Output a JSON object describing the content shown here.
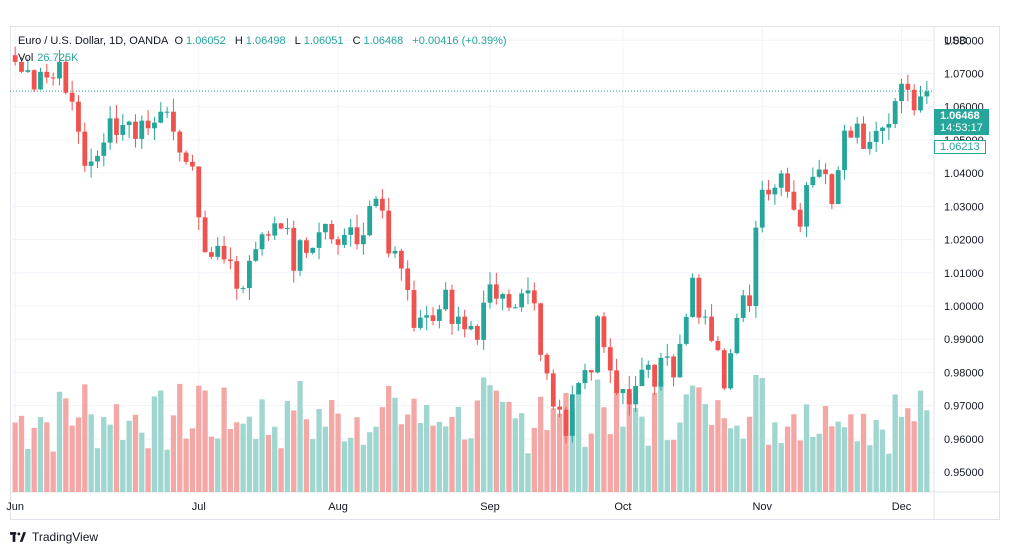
{
  "legend": {
    "symbol": "Euro / U.S. Dollar, 1D, OANDA",
    "open_label": "O",
    "open": "1.06052",
    "high_label": "H",
    "high": "1.06498",
    "low_label": "L",
    "low": "1.06051",
    "close_label": "C",
    "close": "1.06468",
    "change": "+0.00416 (+0.39%)"
  },
  "volume": {
    "label": "Vol",
    "value": "26.725K"
  },
  "price_axis": {
    "currency": "USD",
    "last_price": "1.06468",
    "countdown": "14:53:17",
    "secondary_price": "1.06213"
  },
  "footer": {
    "brand": "TradingView"
  },
  "colors": {
    "up": "#26a69a",
    "down": "#ef5350",
    "up_vol": "#9fd6cf",
    "down_vol": "#f4a8a6",
    "grid": "#f0f3fa"
  },
  "chart_data": {
    "type": "candlestick",
    "title": "Euro / U.S. Dollar, 1D, OANDA",
    "ylim": [
      0.944,
      1.084
    ],
    "y_ticks": [
      "1.08000",
      "1.07000",
      "1.06000",
      "1.05000",
      "1.04000",
      "1.03000",
      "1.02000",
      "1.01000",
      "1.00000",
      "0.99000",
      "0.98000",
      "0.97000",
      "0.96000",
      "0.95000"
    ],
    "x_ticks": [
      "Jun",
      "Jul",
      "Aug",
      "Sep",
      "Oct",
      "Nov",
      "Dec"
    ],
    "x_tick_index": [
      0,
      29,
      51,
      75,
      96,
      118,
      140
    ],
    "close_path": [
      1.0735,
      1.0705,
      1.071,
      1.0652,
      1.0705,
      1.0688,
      1.0685,
      1.0735,
      1.0642,
      1.0615,
      1.0525,
      1.0422,
      1.0435,
      1.0452,
      1.0492,
      1.0565,
      1.0515,
      1.0545,
      1.0555,
      1.0503,
      1.0558,
      1.0535,
      1.0552,
      1.0585,
      1.0585,
      1.0525,
      1.0462,
      1.0434,
      1.042,
      1.0267,
      1.0162,
      1.0148,
      1.0181,
      1.014,
      1.0135,
      1.0052,
      1.0054,
      1.0136,
      1.0171,
      1.0216,
      1.0212,
      1.0249,
      1.0233,
      1.0235,
      1.0106,
      1.0198,
      1.016,
      1.0175,
      1.0222,
      1.0247,
      1.0201,
      1.0184,
      1.0214,
      1.0237,
      1.0186,
      1.0213,
      1.0301,
      1.0323,
      1.0287,
      1.0158,
      1.0166,
      1.0113,
      1.0048,
      0.9934,
      0.9965,
      0.9972,
      0.9955,
      0.999,
      1.0049,
      0.9946,
      0.9968,
      0.993,
      0.994,
      0.9898,
      1.001,
      1.0065,
      1.0022,
      1.0036,
      0.9995,
      0.9996,
      1.0038,
      1.0047,
      1.0008,
      0.9853,
      0.9797,
      0.9697,
      0.9688,
      0.9609,
      0.9734,
      0.9768,
      0.9807,
      0.98,
      0.9969,
      0.9876,
      0.9806,
      0.9738,
      0.975,
      0.9704,
      0.9759,
      0.9808,
      0.9823,
      0.9757,
      0.9844,
      0.9848,
      0.9785,
      0.9886,
      0.9967,
      1.0085,
      0.9965,
      0.9968,
      0.9895,
      0.9867,
      0.9752,
      0.9858,
      0.9964,
      1.0032,
      1.0,
      1.0236,
      1.035,
      1.0336,
      1.0356,
      1.0399,
      1.0344,
      1.029,
      1.0239,
      1.0364,
      1.0389,
      1.0411,
      1.0397,
      1.0307,
      1.0409,
      1.0528,
      1.0507,
      1.0549,
      1.0473,
      1.0494,
      1.0527,
      1.0537,
      1.0548,
      1.0617,
      1.0669,
      1.0651,
      1.0589,
      1.0631,
      1.0646
    ]
  }
}
